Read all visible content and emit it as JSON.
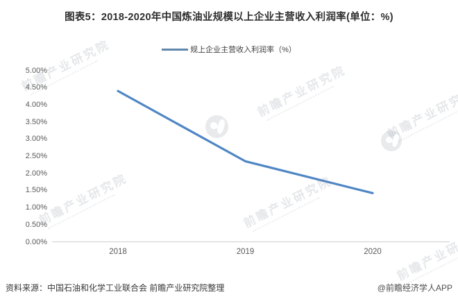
{
  "header": {
    "title": "图表5：2018-2020年中国炼油业规模以上企业主营收入利润率(单位：%)"
  },
  "legend": {
    "label": "规上企业主营收入利润率（%）"
  },
  "chart_data": {
    "type": "line",
    "categories": [
      "2018",
      "2019",
      "2020"
    ],
    "series": [
      {
        "name": "规上企业主营收入利润率（%）",
        "values": [
          4.4,
          2.35,
          1.42
        ]
      }
    ],
    "ylim": [
      0,
      5
    ],
    "y_tick_step": 0.5,
    "y_tick_labels": [
      "0.00%",
      "0.50%",
      "1.00%",
      "1.50%",
      "2.00%",
      "2.50%",
      "3.00%",
      "3.50%",
      "4.00%",
      "4.50%",
      "5.00%"
    ],
    "grid": false,
    "legend_position": "top-center",
    "xlabel": "",
    "ylabel": ""
  },
  "colors": {
    "line": "#4F86C4",
    "legend_swatch": "#5F86AD",
    "axis_line": "#d6d6d6"
  },
  "footer": {
    "source": "资料来源：中国石油和化学工业联合会 前瞻产业研究院整理",
    "credit": "@前瞻经济学人APP"
  },
  "watermark": {
    "text": "前瞻产业研究院"
  }
}
